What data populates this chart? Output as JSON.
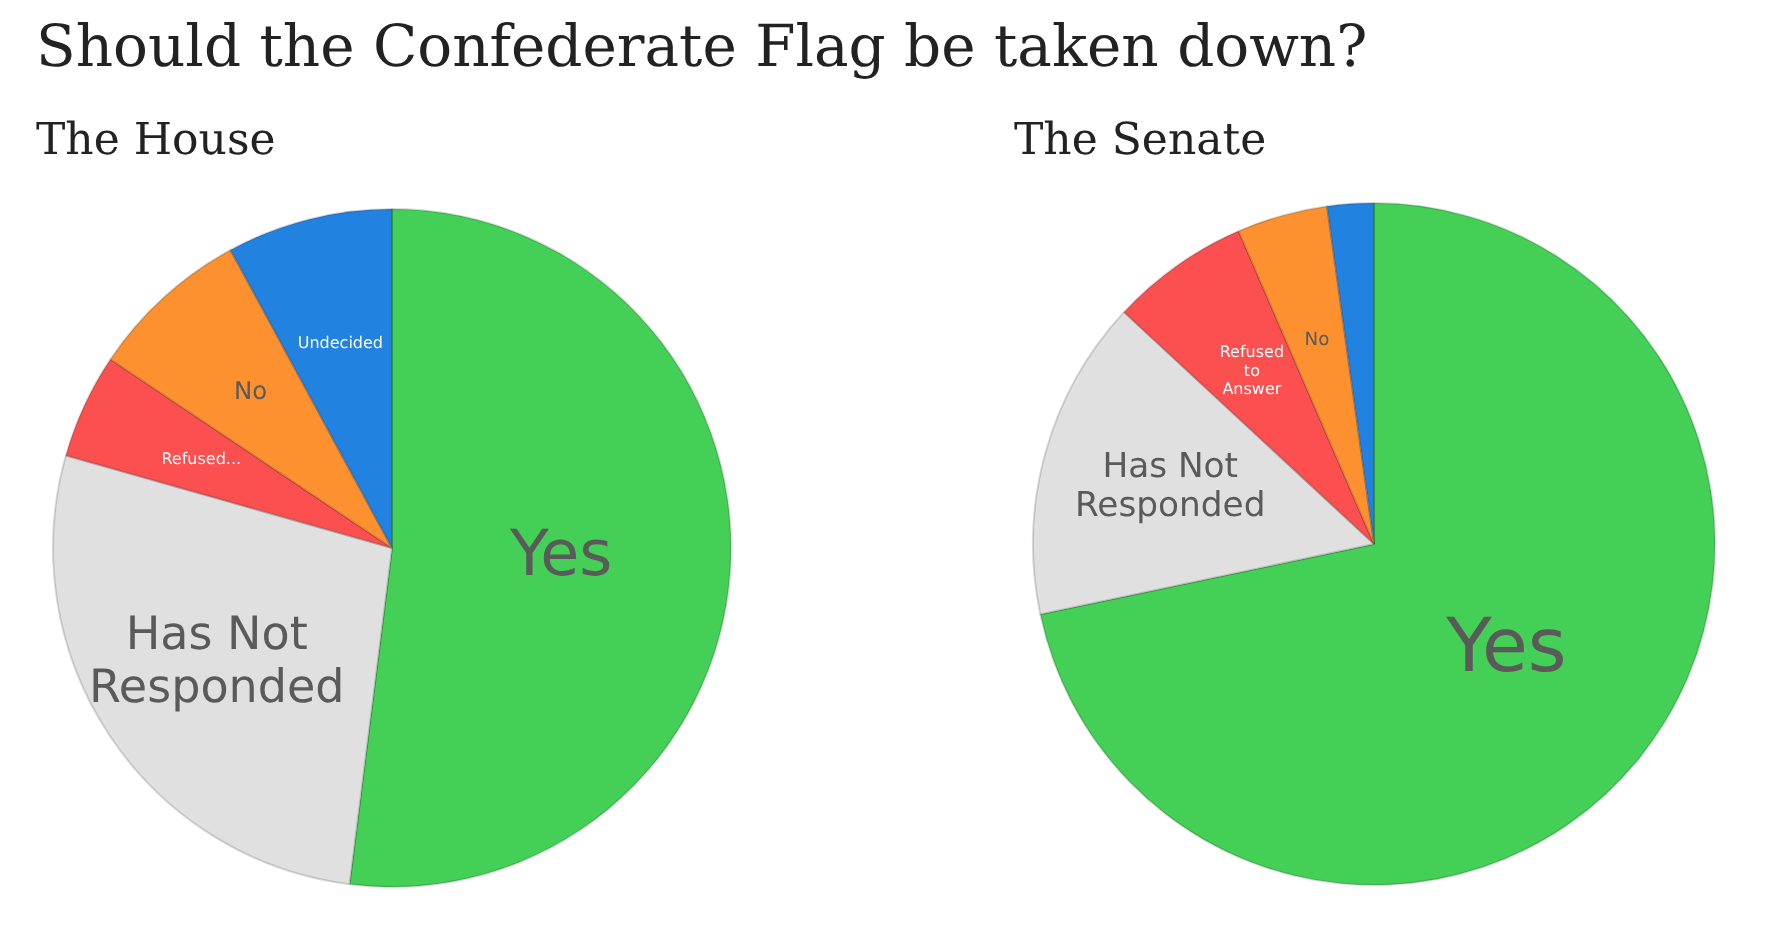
{
  "chart_data": [
    {
      "type": "pie",
      "title": "Should the Confederate Flag be taken down?",
      "subtitle": "The House",
      "categories": [
        "Yes",
        "Has Not Responded",
        "Refused...",
        "No",
        "Undecided"
      ],
      "values": [
        52,
        27.4,
        5,
        7.7,
        7.9
      ],
      "colors": [
        "#44cf56",
        "#e0e0e0",
        "#fc5050",
        "#fd9130",
        "#2282e0"
      ],
      "legend": false
    },
    {
      "type": "pie",
      "subtitle": "The Senate",
      "categories": [
        "Yes",
        "Has Not Responded",
        "Refused to Answer",
        "No",
        null
      ],
      "values": [
        71.7,
        15.2,
        6.6,
        4.3,
        2.2
      ],
      "colors": [
        "#44cf56",
        "#e0e0e0",
        "#fc5050",
        "#fd9130",
        "#2282e0"
      ],
      "legend": false
    }
  ]
}
